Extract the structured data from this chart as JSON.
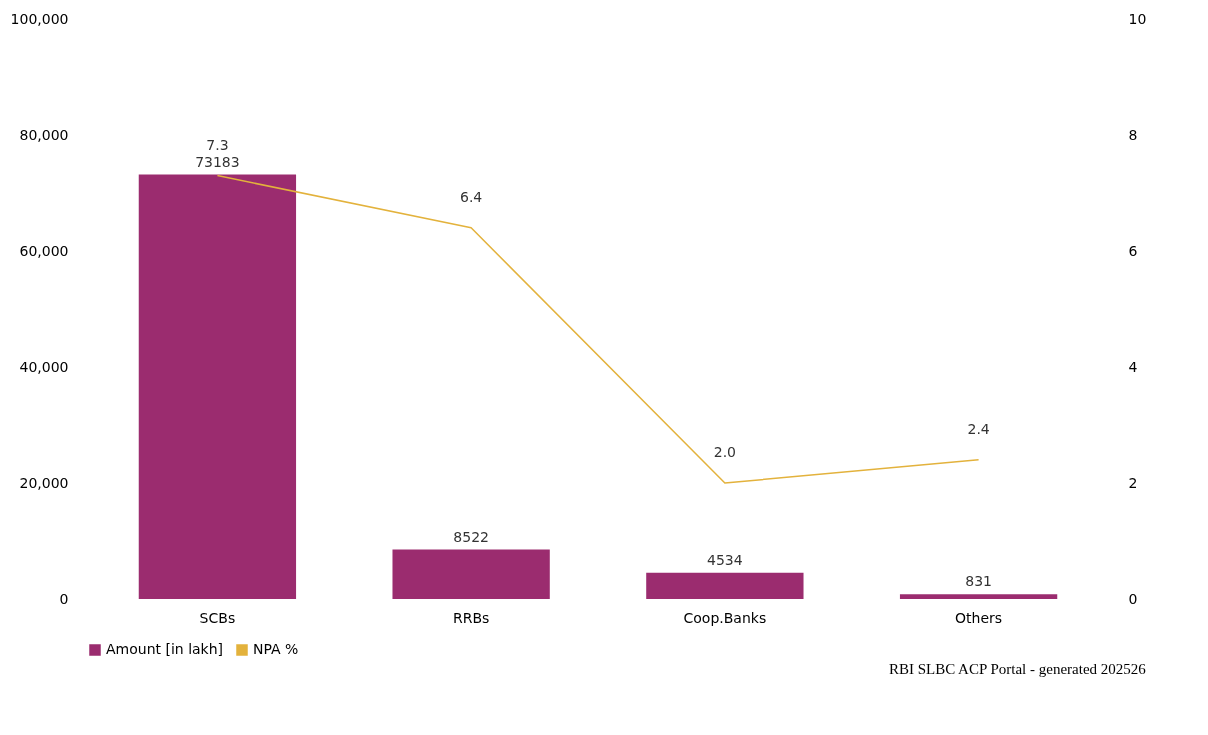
{
  "chart_data": {
    "type": "bar",
    "categories": [
      "SCBs",
      "RRBs",
      "Coop.Banks",
      "Others"
    ],
    "series": [
      {
        "name": "Amount [in lakh]",
        "color": "#9b2c6f",
        "values": [
          73183,
          8522,
          4534,
          831
        ]
      },
      {
        "name": "NPA %",
        "type": "line",
        "axis": "y2",
        "color": "#e3b23c",
        "values": [
          7.3,
          6.4,
          2.0,
          2.4
        ],
        "value_labels": [
          "7.3",
          "6.4",
          "2.0",
          "2.4"
        ]
      }
    ],
    "ylim": [
      0,
      100000
    ],
    "yticks": [
      {
        "value": 0,
        "label": "0"
      },
      {
        "value": 20000,
        "label": "20,000"
      },
      {
        "value": 40000,
        "label": "40,000"
      },
      {
        "value": 60000,
        "label": "60,000"
      },
      {
        "value": 80000,
        "label": "80,000"
      },
      {
        "value": 100000,
        "label": "100,000"
      }
    ],
    "y2lim": [
      0,
      10
    ],
    "y2ticks": [
      0,
      2,
      4,
      6,
      8,
      10
    ],
    "data_labels": true,
    "grid": false,
    "legend": "bottom",
    "annotations": [
      "RBI SLBC ACP Portal - generated 202526"
    ]
  }
}
